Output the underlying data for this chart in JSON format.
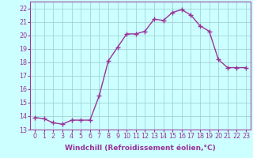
{
  "x": [
    0,
    1,
    2,
    3,
    4,
    5,
    6,
    7,
    8,
    9,
    10,
    11,
    12,
    13,
    14,
    15,
    16,
    17,
    18,
    19,
    20,
    21,
    22,
    23
  ],
  "y": [
    13.9,
    13.8,
    13.5,
    13.4,
    13.7,
    13.7,
    13.7,
    15.5,
    18.1,
    19.1,
    20.1,
    20.1,
    20.3,
    21.2,
    21.1,
    21.7,
    21.9,
    21.5,
    20.7,
    20.3,
    18.2,
    17.6,
    17.6,
    17.6
  ],
  "line_color": "#993399",
  "marker": "P",
  "marker_size": 2.5,
  "linewidth": 1.0,
  "xlabel": "Windchill (Refroidissement éolien,°C)",
  "xlabel_fontsize": 6.5,
  "ylabel": "",
  "ylim": [
    13,
    22.5
  ],
  "xlim": [
    -0.5,
    23.5
  ],
  "yticks": [
    13,
    14,
    15,
    16,
    17,
    18,
    19,
    20,
    21,
    22
  ],
  "xticks": [
    0,
    1,
    2,
    3,
    4,
    5,
    6,
    7,
    8,
    9,
    10,
    11,
    12,
    13,
    14,
    15,
    16,
    17,
    18,
    19,
    20,
    21,
    22,
    23
  ],
  "xtick_labels": [
    "0",
    "1",
    "2",
    "3",
    "4",
    "5",
    "6",
    "7",
    "8",
    "9",
    "10",
    "11",
    "12",
    "13",
    "14",
    "15",
    "16",
    "17",
    "18",
    "19",
    "20",
    "21",
    "22",
    "23"
  ],
  "background_color": "#ccffff",
  "grid_color": "#99cccc",
  "tick_fontsize": 5.8,
  "title": ""
}
